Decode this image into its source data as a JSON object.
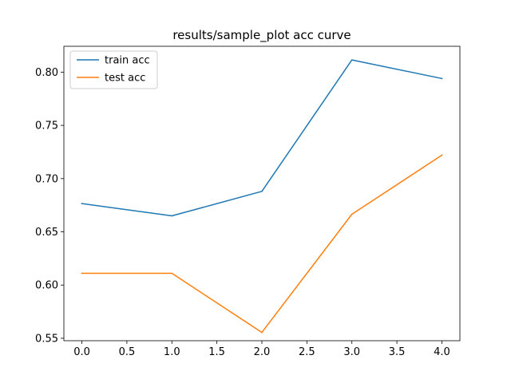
{
  "chart_data": {
    "type": "line",
    "title": "results/sample_plot acc curve",
    "xlabel": "",
    "ylabel": "",
    "x": [
      0,
      1,
      2,
      3,
      4
    ],
    "series": [
      {
        "name": "train acc",
        "color": "#1f77b4",
        "values": [
          0.6765,
          0.665,
          0.688,
          0.8115,
          0.794
        ]
      },
      {
        "name": "test acc",
        "color": "#ff7f0e",
        "values": [
          0.611,
          0.611,
          0.5555,
          0.6665,
          0.722
        ]
      }
    ],
    "xlim": [
      -0.2,
      4.2
    ],
    "ylim": [
      0.5477,
      0.8243
    ],
    "xticks": [
      0.0,
      0.5,
      1.0,
      1.5,
      2.0,
      2.5,
      3.0,
      3.5,
      4.0
    ],
    "xtick_labels": [
      "0.0",
      "0.5",
      "1.0",
      "1.5",
      "2.0",
      "2.5",
      "3.0",
      "3.5",
      "4.0"
    ],
    "yticks": [
      0.55,
      0.6,
      0.65,
      0.7,
      0.75,
      0.8
    ],
    "ytick_labels": [
      "0.55",
      "0.60",
      "0.65",
      "0.70",
      "0.75",
      "0.80"
    ],
    "grid": false,
    "legend_position": "upper-left"
  }
}
